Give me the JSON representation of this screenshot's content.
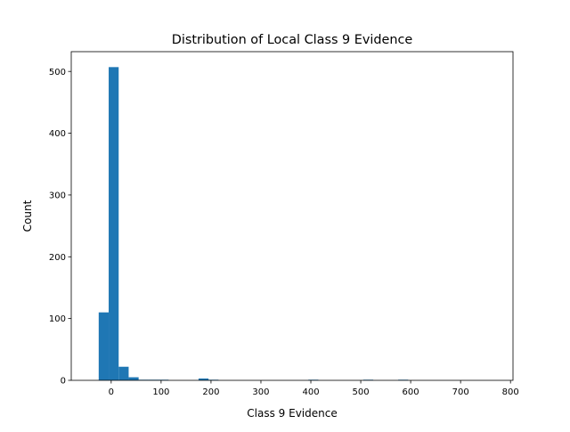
{
  "chart_data": {
    "type": "bar",
    "subtype": "histogram",
    "title": "Distribution of Local Class 9 Evidence",
    "xlabel": "Class 9 Evidence",
    "ylabel": "Count",
    "xlim": [
      -80,
      805
    ],
    "ylim": [
      0,
      532
    ],
    "xticks": [
      0,
      100,
      200,
      300,
      400,
      500,
      600,
      700,
      800
    ],
    "yticks": [
      0,
      100,
      200,
      300,
      400,
      500
    ],
    "bin_width": 20,
    "grid": false,
    "legend": "none",
    "bar_color": "#1f77b4",
    "bins": [
      {
        "x0": -25,
        "x1": -5,
        "count": 110
      },
      {
        "x0": -5,
        "x1": 15,
        "count": 507
      },
      {
        "x0": 15,
        "x1": 35,
        "count": 22
      },
      {
        "x0": 35,
        "x1": 55,
        "count": 5
      },
      {
        "x0": 55,
        "x1": 75,
        "count": 1
      },
      {
        "x0": 75,
        "x1": 95,
        "count": 1
      },
      {
        "x0": 95,
        "x1": 115,
        "count": 1
      },
      {
        "x0": 175,
        "x1": 195,
        "count": 3
      },
      {
        "x0": 195,
        "x1": 215,
        "count": 1
      },
      {
        "x0": 395,
        "x1": 415,
        "count": 1
      },
      {
        "x0": 505,
        "x1": 525,
        "count": 1
      },
      {
        "x0": 575,
        "x1": 595,
        "count": 1
      }
    ]
  }
}
